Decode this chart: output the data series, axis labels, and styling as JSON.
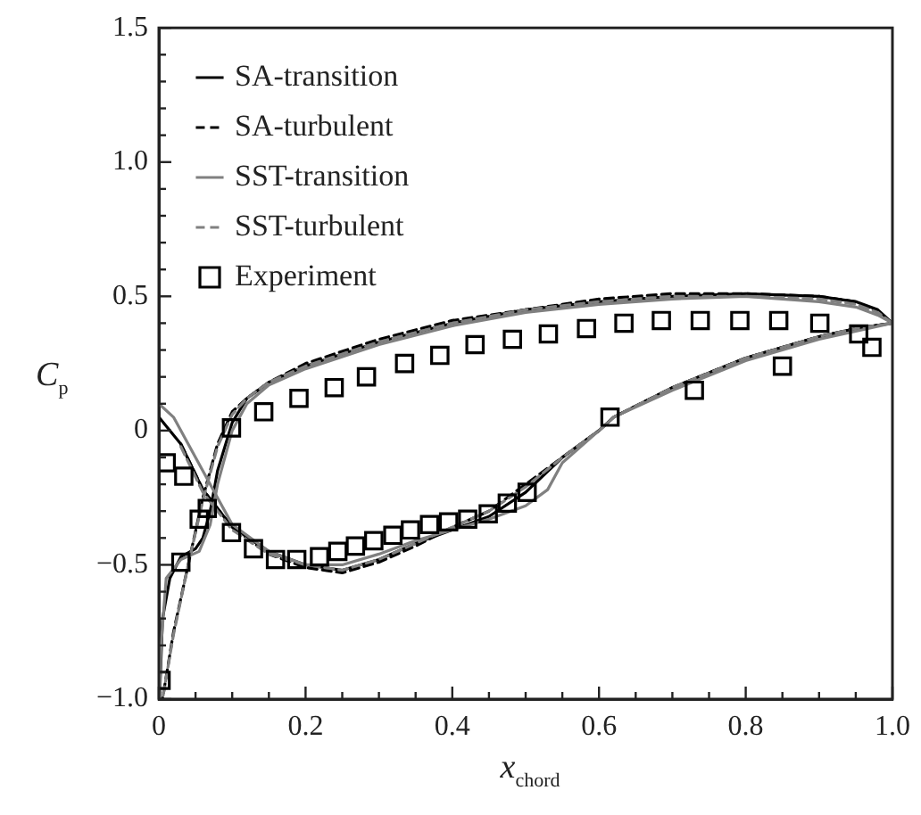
{
  "chart_data": {
    "type": "line",
    "xlabel": "x$_{chord}$",
    "ylabel": "C$_{p}$",
    "legend": "top left",
    "xlim": [
      0,
      1
    ],
    "ylim": [
      -1,
      1.5
    ],
    "xticks": [
      {
        "value": 0,
        "label": "0"
      },
      {
        "value": 0.05,
        "label": null
      },
      {
        "value": 0.1,
        "label": null
      },
      {
        "value": 0.15,
        "label": null
      },
      {
        "value": 0.2,
        "label": "0.2"
      },
      {
        "value": 0.25,
        "label": null
      },
      {
        "value": 0.3,
        "label": null
      },
      {
        "value": 0.35,
        "label": null
      },
      {
        "value": 0.4,
        "label": "0.4"
      },
      {
        "value": 0.45,
        "label": null
      },
      {
        "value": 0.5,
        "label": null
      },
      {
        "value": 0.55,
        "label": null
      },
      {
        "value": 0.6,
        "label": "0.6"
      },
      {
        "value": 0.65,
        "label": null
      },
      {
        "value": 0.7,
        "label": null
      },
      {
        "value": 0.75,
        "label": null
      },
      {
        "value": 0.8,
        "label": "0.8"
      },
      {
        "value": 0.85,
        "label": null
      },
      {
        "value": 0.9,
        "label": null
      },
      {
        "value": 0.95,
        "label": null
      },
      {
        "value": 1,
        "label": "1.0"
      }
    ],
    "yticks": [
      {
        "value": -1,
        "label": "−1.0"
      },
      {
        "value": -0.9,
        "label": null
      },
      {
        "value": -0.8,
        "label": null
      },
      {
        "value": -0.7,
        "label": null
      },
      {
        "value": -0.6,
        "label": null
      },
      {
        "value": -0.5,
        "label": "−0.5"
      },
      {
        "value": -0.4,
        "label": null
      },
      {
        "value": -0.3,
        "label": null
      },
      {
        "value": -0.2,
        "label": null
      },
      {
        "value": -0.1,
        "label": null
      },
      {
        "value": 0,
        "label": "0"
      },
      {
        "value": 0.1,
        "label": null
      },
      {
        "value": 0.2,
        "label": null
      },
      {
        "value": 0.3,
        "label": null
      },
      {
        "value": 0.4,
        "label": null
      },
      {
        "value": 0.5,
        "label": "0.5"
      },
      {
        "value": 0.6,
        "label": null
      },
      {
        "value": 0.7,
        "label": null
      },
      {
        "value": 0.8,
        "label": null
      },
      {
        "value": 0.9,
        "label": null
      },
      {
        "value": 1,
        "label": "1.0"
      },
      {
        "value": 1.1,
        "label": null
      },
      {
        "value": 1.2,
        "label": null
      },
      {
        "value": 1.3,
        "label": null
      },
      {
        "value": 1.4,
        "label": null
      },
      {
        "value": 1.5,
        "label": "1.5"
      }
    ],
    "series": [
      {
        "name": "SA-transition",
        "color": "#000000",
        "line_style": "solid",
        "x": [
          1,
          0.98,
          0.95,
          0.9,
          0.8,
          0.7,
          0.6,
          0.5,
          0.4,
          0.3,
          0.2,
          0.15,
          0.12,
          0.1,
          0.08,
          0.07,
          0.06,
          0.05,
          0.03,
          0.015,
          0.005,
          0.001
        ],
        "values": [
          0.4,
          0.45,
          0.48,
          0.5,
          0.51,
          0.5,
          0.48,
          0.45,
          0.4,
          0.33,
          0.24,
          0.18,
          0.12,
          0.03,
          -0.15,
          -0.3,
          -0.4,
          -0.44,
          -0.47,
          -0.55,
          -0.7,
          -1
        ]
      },
      {
        "name": "SA-turbulent",
        "color": "#000000",
        "line_style": "dashed",
        "x": [
          1,
          0.98,
          0.95,
          0.9,
          0.8,
          0.7,
          0.6,
          0.5,
          0.4,
          0.3,
          0.2,
          0.15,
          0.12,
          0.1,
          0.08,
          0.06,
          0.04,
          0.02,
          0.005
        ],
        "values": [
          0.4,
          0.44,
          0.48,
          0.5,
          0.51,
          0.51,
          0.49,
          0.45,
          0.41,
          0.34,
          0.25,
          0.18,
          0.12,
          0.07,
          -0.05,
          -0.25,
          -0.5,
          -0.75,
          -1
        ]
      },
      {
        "name": "SST-transition",
        "color": "#808080",
        "line_style": "solid",
        "x": [
          1,
          0.98,
          0.95,
          0.9,
          0.8,
          0.7,
          0.6,
          0.5,
          0.4,
          0.3,
          0.2,
          0.15,
          0.12,
          0.1,
          0.08,
          0.07,
          0.055,
          0.03,
          0.01,
          0.003,
          0.001
        ],
        "values": [
          0.4,
          0.43,
          0.46,
          0.48,
          0.5,
          0.49,
          0.47,
          0.44,
          0.39,
          0.32,
          0.23,
          0.17,
          0.1,
          0,
          -0.2,
          -0.35,
          -0.45,
          -0.48,
          -0.55,
          -0.8,
          -1
        ]
      },
      {
        "name": "SST-turbulent",
        "color": "#808080",
        "line_style": "dashed",
        "x": [
          1,
          0.98,
          0.95,
          0.9,
          0.8,
          0.7,
          0.6,
          0.5,
          0.4,
          0.3,
          0.2,
          0.15,
          0.12,
          0.1,
          0.08,
          0.06,
          0.04,
          0.02,
          0.005
        ],
        "values": [
          0.4,
          0.44,
          0.47,
          0.49,
          0.5,
          0.5,
          0.48,
          0.45,
          0.4,
          0.33,
          0.24,
          0.18,
          0.12,
          0.06,
          -0.06,
          -0.26,
          -0.5,
          -0.76,
          -1
        ]
      },
      {
        "color": "#000000",
        "line_style": "solid",
        "x": [
          0,
          0.03,
          0.06,
          0.1,
          0.15,
          0.2,
          0.25,
          0.3,
          0.35,
          0.4,
          0.45,
          0.5,
          0.55,
          0.6,
          0.62,
          0.7,
          0.8,
          0.9,
          0.95,
          1
        ],
        "values": [
          0.05,
          -0.05,
          -0.22,
          -0.36,
          -0.45,
          -0.5,
          -0.52,
          -0.48,
          -0.42,
          -0.37,
          -0.32,
          -0.23,
          -0.1,
          0,
          0.05,
          0.16,
          0.27,
          0.35,
          0.38,
          0.4
        ]
      },
      {
        "color": "#000000",
        "line_style": "dashed",
        "x": [
          0.03,
          0.06,
          0.1,
          0.15,
          0.2,
          0.25,
          0.3,
          0.35,
          0.4,
          0.45,
          0.5,
          0.55,
          0.6,
          0.62,
          0.7,
          0.8,
          0.9,
          0.95,
          1
        ],
        "values": [
          -0.05,
          -0.22,
          -0.36,
          -0.46,
          -0.51,
          -0.53,
          -0.49,
          -0.43,
          -0.36,
          -0.3,
          -0.2,
          -0.1,
          0,
          0.05,
          0.16,
          0.27,
          0.35,
          0.38,
          0.4
        ]
      },
      {
        "color": "#808080",
        "line_style": "solid",
        "x": [
          0,
          0.02,
          0.05,
          0.08,
          0.1,
          0.15,
          0.2,
          0.25,
          0.3,
          0.35,
          0.4,
          0.45,
          0.5,
          0.53,
          0.55,
          0.6,
          0.62,
          0.7,
          0.8,
          0.9,
          0.95,
          1
        ],
        "values": [
          0.1,
          0.05,
          -0.1,
          -0.25,
          -0.35,
          -0.45,
          -0.5,
          -0.5,
          -0.46,
          -0.41,
          -0.37,
          -0.33,
          -0.28,
          -0.22,
          -0.12,
          0,
          0.05,
          0.15,
          0.26,
          0.34,
          0.37,
          0.4
        ]
      },
      {
        "color": "#808080",
        "line_style": "dashed",
        "x": [
          0.03,
          0.06,
          0.1,
          0.15,
          0.2,
          0.25,
          0.3,
          0.35,
          0.4,
          0.45,
          0.5,
          0.55,
          0.6,
          0.62,
          0.7,
          0.8,
          0.9,
          0.95,
          1
        ],
        "values": [
          -0.06,
          -0.23,
          -0.37,
          -0.46,
          -0.5,
          -0.52,
          -0.48,
          -0.42,
          -0.36,
          -0.3,
          -0.21,
          -0.1,
          0,
          0.05,
          0.16,
          0.27,
          0.35,
          0.38,
          0.4
        ]
      },
      {
        "name": "Experiment",
        "color": "#000000",
        "type": "scatter",
        "marker": "square",
        "x": [
          0.003,
          0.01,
          0.034,
          0.03,
          0.055,
          0.066,
          0.099,
          0.143,
          0.191,
          0.239,
          0.283,
          0.335,
          0.383,
          0.431,
          0.482,
          0.531,
          0.583,
          0.634,
          0.685,
          0.738,
          0.792,
          0.845,
          0.901,
          0.954,
          0.972,
          0.85,
          0.73,
          0.615,
          0.099,
          0.129,
          0.159,
          0.188,
          0.219,
          0.244,
          0.268,
          0.293,
          0.319,
          0.343,
          0.369,
          0.395,
          0.421,
          0.449,
          0.475,
          0.502
        ],
        "values": [
          -0.93,
          -0.12,
          -0.17,
          -0.49,
          -0.33,
          -0.29,
          0.01,
          0.07,
          0.12,
          0.16,
          0.2,
          0.25,
          0.28,
          0.32,
          0.34,
          0.36,
          0.38,
          0.4,
          0.41,
          0.41,
          0.41,
          0.41,
          0.4,
          0.36,
          0.31,
          0.24,
          0.15,
          0.05,
          -0.38,
          -0.44,
          -0.48,
          -0.48,
          -0.47,
          -0.45,
          -0.43,
          -0.41,
          -0.39,
          -0.37,
          -0.35,
          -0.34,
          -0.33,
          -0.31,
          -0.27,
          -0.23
        ]
      }
    ]
  }
}
